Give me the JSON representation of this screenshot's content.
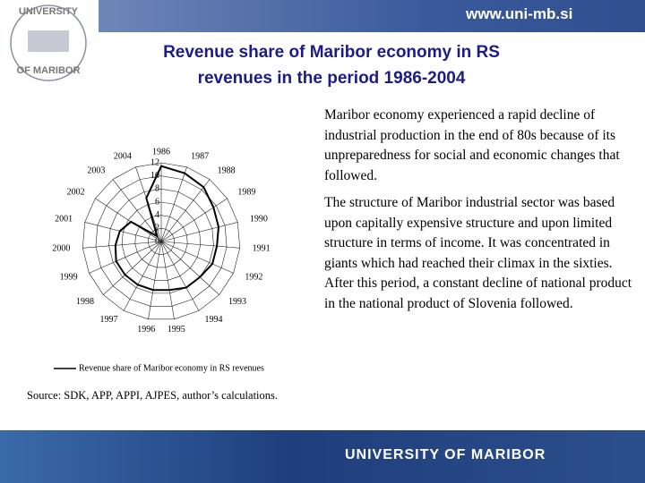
{
  "header": {
    "url": "www.uni-mb.si",
    "logo_top": "UNIVERSITY",
    "logo_bottom": "OF MARIBOR"
  },
  "title": [
    "Revenue share of Maribor economy in RS",
    "revenues in the period 1986-2004"
  ],
  "paragraphs": [
    "Maribor economy experienced a rapid decline of industrial production in the end of 80s because of its unpreparedness for social and economic changes that followed.",
    "The structure of Maribor industrial sector was based upon capitally expensive structure and upon limited structure in terms of income. It was concentrated in giants which had reached their climax in the sixties. After this period, a constant decline of national product in the national product of Slovenia followed."
  ],
  "source": "Source: SDK, APP, APPI, AJPES, author’s calculations.",
  "footer": {
    "name": "UNIVERSITY OF MARIBOR"
  },
  "chart_data": {
    "type": "radar",
    "categories": [
      "1986",
      "1987",
      "1988",
      "1989",
      "1990",
      "1991",
      "1992",
      "1993",
      "1994",
      "1995",
      "1996",
      "1997",
      "1998",
      "1999",
      "2000",
      "2001",
      "2002",
      "2003",
      "2004"
    ],
    "series": [
      {
        "name": "Revenue share of Maribor economy in RS revenues",
        "color": "#000000",
        "values": [
          11.5,
          11,
          10.5,
          9.5,
          9,
          8.5,
          8.5,
          8,
          8,
          7.5,
          7.5,
          7.5,
          7.5,
          7.5,
          7,
          6.5,
          5.5,
          1,
          7
        ]
      }
    ],
    "rlim": [
      0,
      12
    ],
    "rticks": [
      0,
      2,
      4,
      6,
      8,
      10,
      12
    ],
    "grid": true
  }
}
